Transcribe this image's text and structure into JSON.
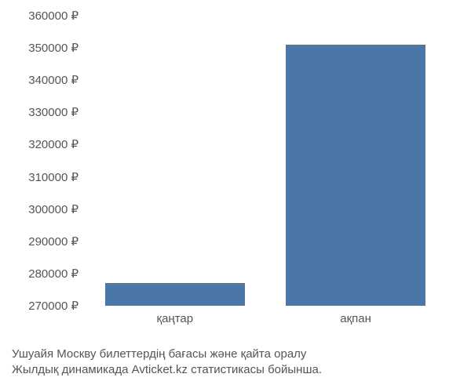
{
  "chart": {
    "type": "bar",
    "categories": [
      "қаңтар",
      "ақпан"
    ],
    "values": [
      277000,
      351000
    ],
    "bar_color": "#4a76a8",
    "bar_width_pct": 38,
    "bar_positions_pct": [
      24,
      73
    ],
    "ylim": [
      270000,
      360000
    ],
    "yticks": [
      270000,
      280000,
      290000,
      300000,
      310000,
      320000,
      330000,
      340000,
      350000,
      360000
    ],
    "ytick_labels": [
      "270000 ₽",
      "280000 ₽",
      "290000 ₽",
      "300000 ₽",
      "310000 ₽",
      "320000 ₽",
      "330000 ₽",
      "340000 ₽",
      "350000 ₽",
      "360000 ₽"
    ],
    "currency": "₽",
    "axis_label_color": "#555555",
    "axis_label_fontsize": 15,
    "background_color": "#ffffff"
  },
  "caption": {
    "line1": "Ушуайя Москву билеттердің бағасы және қайта оралу",
    "line2": "Жылдық динамикада Avticket.kz статистикасы бойынша."
  }
}
